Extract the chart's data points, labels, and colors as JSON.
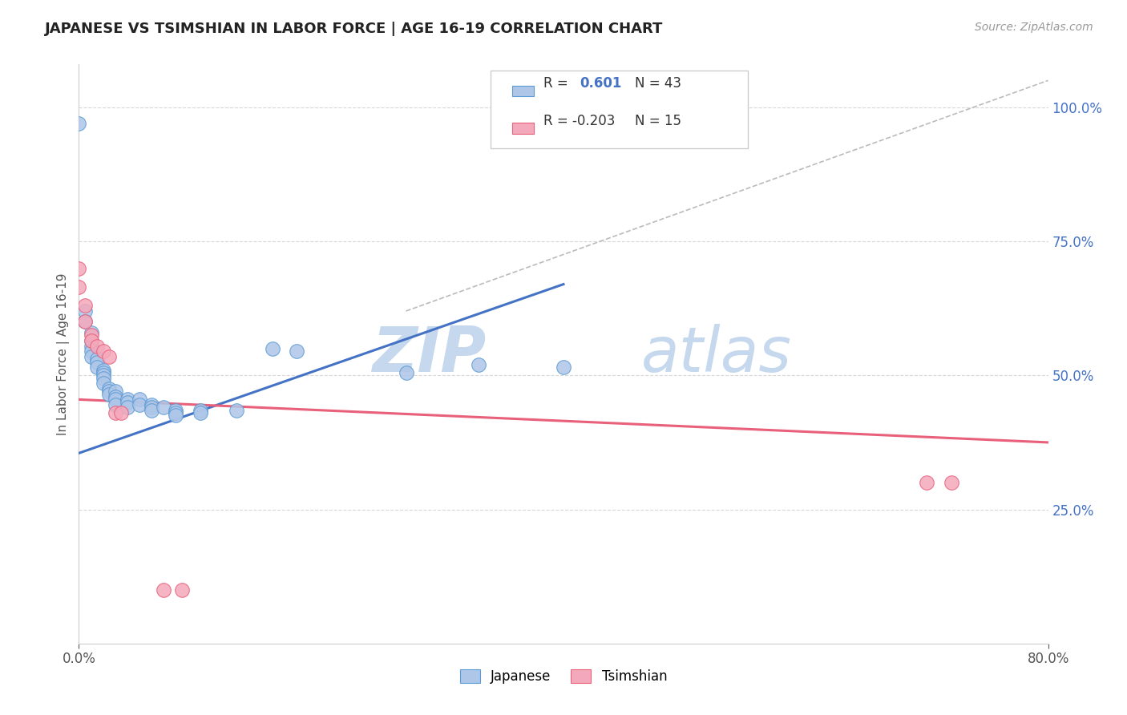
{
  "title": "JAPANESE VS TSIMSHIAN IN LABOR FORCE | AGE 16-19 CORRELATION CHART",
  "source_text": "Source: ZipAtlas.com",
  "ylabel": "In Labor Force | Age 16-19",
  "xlim": [
    0.0,
    0.8
  ],
  "ylim": [
    0.0,
    1.08
  ],
  "x_ticks": [
    0.0,
    0.8
  ],
  "x_tick_labels": [
    "0.0%",
    "80.0%"
  ],
  "y_tick_positions_right": [
    0.25,
    0.5,
    0.75,
    1.0
  ],
  "y_tick_labels_right": [
    "25.0%",
    "50.0%",
    "75.0%",
    "100.0%"
  ],
  "japanese_r": "0.601",
  "japanese_n": "43",
  "tsimshian_r": "-0.203",
  "tsimshian_n": "15",
  "japanese_color": "#aec6e8",
  "tsimshian_color": "#f4a8bb",
  "japanese_edge_color": "#5b9bd5",
  "tsimshian_edge_color": "#e8607a",
  "japanese_line_color": "#4472c4",
  "tsimshian_line_color": "#e8607a",
  "r_value_color": "#4472c4",
  "watermark_color": "#dce8f5",
  "background_color": "#ffffff",
  "grid_color": "#d8d8d8",
  "japanese_points": [
    [
      0.0,
      0.97
    ],
    [
      0.005,
      0.62
    ],
    [
      0.005,
      0.6
    ],
    [
      0.01,
      0.58
    ],
    [
      0.01,
      0.565
    ],
    [
      0.01,
      0.555
    ],
    [
      0.01,
      0.545
    ],
    [
      0.01,
      0.535
    ],
    [
      0.015,
      0.53
    ],
    [
      0.015,
      0.525
    ],
    [
      0.015,
      0.515
    ],
    [
      0.02,
      0.51
    ],
    [
      0.02,
      0.505
    ],
    [
      0.02,
      0.5
    ],
    [
      0.02,
      0.495
    ],
    [
      0.02,
      0.485
    ],
    [
      0.025,
      0.475
    ],
    [
      0.025,
      0.47
    ],
    [
      0.025,
      0.465
    ],
    [
      0.03,
      0.47
    ],
    [
      0.03,
      0.46
    ],
    [
      0.03,
      0.455
    ],
    [
      0.03,
      0.445
    ],
    [
      0.04,
      0.455
    ],
    [
      0.04,
      0.45
    ],
    [
      0.04,
      0.44
    ],
    [
      0.05,
      0.455
    ],
    [
      0.05,
      0.445
    ],
    [
      0.06,
      0.445
    ],
    [
      0.06,
      0.44
    ],
    [
      0.06,
      0.435
    ],
    [
      0.07,
      0.44
    ],
    [
      0.08,
      0.435
    ],
    [
      0.08,
      0.43
    ],
    [
      0.08,
      0.425
    ],
    [
      0.1,
      0.435
    ],
    [
      0.1,
      0.43
    ],
    [
      0.13,
      0.435
    ],
    [
      0.16,
      0.55
    ],
    [
      0.18,
      0.545
    ],
    [
      0.27,
      0.505
    ],
    [
      0.33,
      0.52
    ],
    [
      0.4,
      0.515
    ]
  ],
  "tsimshian_points": [
    [
      0.0,
      0.7
    ],
    [
      0.0,
      0.665
    ],
    [
      0.005,
      0.63
    ],
    [
      0.005,
      0.6
    ],
    [
      0.01,
      0.575
    ],
    [
      0.01,
      0.565
    ],
    [
      0.015,
      0.555
    ],
    [
      0.02,
      0.545
    ],
    [
      0.025,
      0.535
    ],
    [
      0.03,
      0.43
    ],
    [
      0.035,
      0.43
    ],
    [
      0.07,
      0.1
    ],
    [
      0.085,
      0.1
    ],
    [
      0.7,
      0.3
    ],
    [
      0.72,
      0.3
    ]
  ],
  "japanese_line": [
    [
      0.0,
      0.355
    ],
    [
      0.4,
      0.67
    ]
  ],
  "tsimshian_line": [
    [
      0.0,
      0.455
    ],
    [
      0.8,
      0.375
    ]
  ],
  "dashed_line": [
    [
      0.27,
      0.62
    ],
    [
      0.8,
      1.05
    ]
  ],
  "bottom_legend_labels": [
    "Japanese",
    "Tsimshian"
  ]
}
